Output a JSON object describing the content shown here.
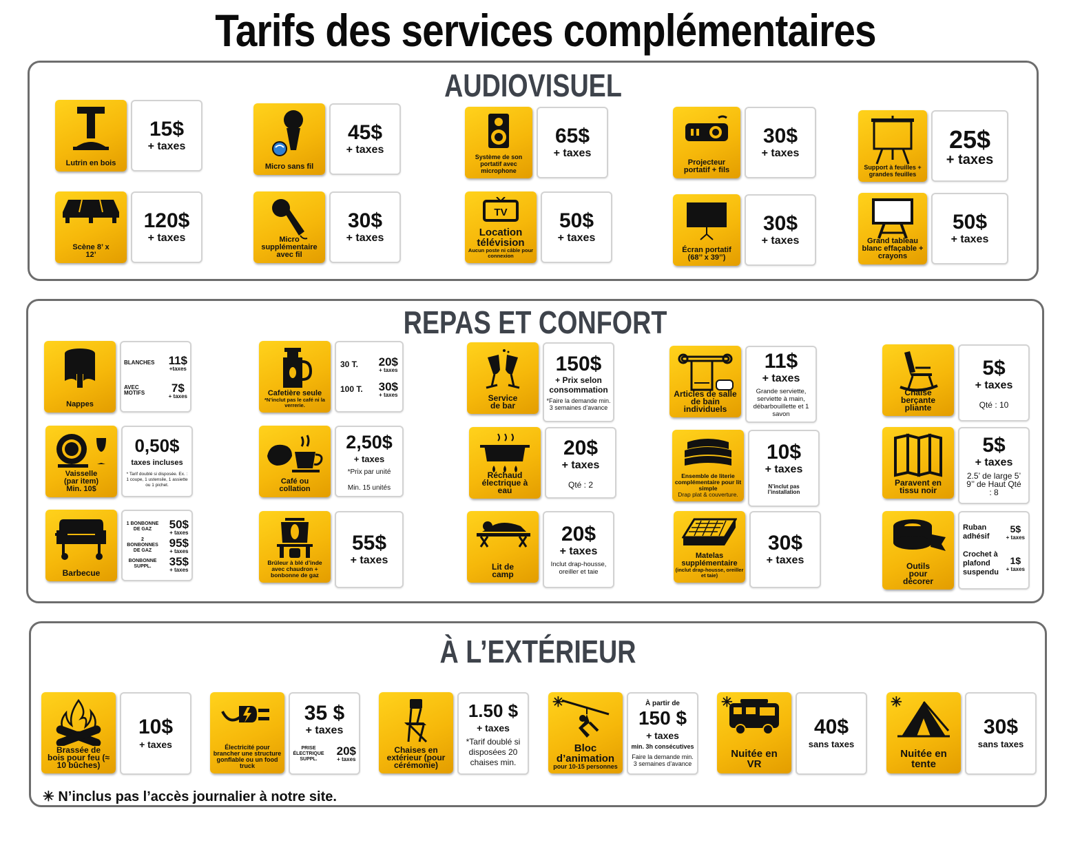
{
  "title": "Tarifs des services complémentaires",
  "sections": {
    "audio": "AUDIOVISUEL",
    "repas": "REPAS ET CONFORT",
    "ext": "À L’EXTÉRIEUR"
  },
  "colors": {
    "accent": "#f6b80a",
    "border": "#6d6d6d",
    "heading": "#3e434b"
  },
  "items": {
    "lutrin": {
      "label": "Lutrin en bois",
      "price": "15$",
      "taxes": "+ taxes",
      "icon": "lectern-icon"
    },
    "scene": {
      "label": "Scène 8’ x 12’",
      "price": "120$",
      "taxes": "+ taxes",
      "icon": "stage-icon"
    },
    "micro_sf": {
      "label": "Micro sans fil",
      "price": "45$",
      "taxes": "+ taxes",
      "icon": "wireless-mic-icon"
    },
    "micro_supp": {
      "label": "Micro supplémentaire avec fil",
      "price": "30$",
      "taxes": "+ taxes",
      "icon": "microphone-icon"
    },
    "son": {
      "label": "Système de son portatif avec microphone",
      "price": "65$",
      "taxes": "+ taxes",
      "icon": "speaker-icon"
    },
    "tv": {
      "label": "Location télévision",
      "sub": "Aucun poste ni câble pour connexion",
      "price": "50$",
      "taxes": "+ taxes",
      "icon": "tv-icon"
    },
    "projecteur": {
      "label": "Projecteur portatif + fils",
      "price": "30$",
      "taxes": "+ taxes",
      "icon": "projector-icon"
    },
    "ecran": {
      "label": "Écran portatif (68’’ x 39’’)",
      "price": "30$",
      "taxes": "+ taxes",
      "icon": "screen-icon"
    },
    "support": {
      "label": "Support à feuilles + grandes feuilles",
      "price": "25$",
      "taxes": "+ taxes",
      "icon": "flipchart-icon"
    },
    "tableau": {
      "label": "Grand tableau blanc effaçable + crayons",
      "price": "50$",
      "taxes": "+ taxes",
      "icon": "whiteboard-icon"
    },
    "nappes": {
      "label": "Nappes",
      "r1_label": "BLANCHES",
      "r1_price": "11$",
      "r1_tax": "+taxes",
      "r2_label": "AVEC MOTIFS",
      "r2_price": "7$",
      "r2_tax": "+ taxes",
      "icon": "table-cloth-icon"
    },
    "vaisselle": {
      "label": "Vaisselle (par item) Min. 10$",
      "price": "0,50$",
      "taxes": "taxes incluses",
      "note": "* Tarif doublé si disposée. Ex. : 1 coupe, 1 ustensile, 1 assiette ou 1 pichet.",
      "icon": "dishes-icon"
    },
    "barbecue": {
      "label": "Barbecue",
      "r1_label": "1 BONBONNE DE GAZ",
      "r1_price": "50$",
      "r1_tax": "+ taxes",
      "r2_label": "2 BONBONNES DE GAZ",
      "r2_price": "95$",
      "r2_tax": "+ taxes",
      "r3_label": "BONBONNE SUPPL.",
      "r3_price": "35$",
      "r3_tax": "+ taxes",
      "icon": "grill-icon"
    },
    "cafetiere": {
      "label": "Cafetière seule",
      "sub": "*N’inclut pas le café ni la verrerie.",
      "r1_label": "30 T.",
      "r1_price": "20$",
      "r1_tax": "+ taxes",
      "r2_label": "100 T.",
      "r2_price": "30$",
      "r2_tax": "+ taxes",
      "icon": "coffee-maker-icon"
    },
    "cafe": {
      "label": "Café ou collation",
      "price": "2,50$",
      "taxes": "+ taxes",
      "note": "*Prix par unité",
      "note2": "Min. 15 unités",
      "icon": "coffee-cup-icon"
    },
    "bruleur": {
      "label": "Brûleur à blé d’inde avec chaudron + bonbonne de gaz",
      "price": "55$",
      "taxes": "+ taxes",
      "icon": "corn-burner-icon"
    },
    "bar": {
      "label": "Service de bar",
      "price": "150$",
      "taxes": "+ Prix selon consommation",
      "note": "*Faire la demande min. 3 semaines d’avance",
      "icon": "champagne-icon"
    },
    "rechaud": {
      "label": "Réchaud électrique à eau",
      "price": "20$",
      "taxes": "+ taxes",
      "note": "Qté : 2",
      "icon": "warmer-icon"
    },
    "lit": {
      "label": "Lit de camp",
      "price": "20$",
      "taxes": "+ taxes",
      "note": "Inclut drap-housse, oreiller et taie",
      "icon": "cot-icon"
    },
    "bain": {
      "label": "Articles de salle de bain individuels",
      "price": "11$",
      "taxes": "+ taxes",
      "note": "Grande serviette, serviette à main, débarbouillette et 1 savon",
      "icon": "towel-icon"
    },
    "literie": {
      "label": "Ensemble de literie complémentaire pour lit simple",
      "sub": "Drap plat & couverture.",
      "price": "10$",
      "taxes": "+ taxes",
      "note": "N’inclut pas l’installation",
      "icon": "bedding-icon"
    },
    "matelas": {
      "label": "Matelas supplémentaire",
      "sub": "(inclut drap-housse, oreiller et taie)",
      "price": "30$",
      "taxes": "+ taxes",
      "icon": "mattress-icon"
    },
    "chaise_b": {
      "label": "Chaise berçante pliante",
      "price": "5$",
      "taxes": "+ taxes",
      "note": "Qté : 10",
      "icon": "rocking-chair-icon"
    },
    "paravent": {
      "label": "Paravent en tissu noir",
      "price": "5$",
      "taxes": "+ taxes",
      "note": "2.5’ de large 5’ 9’’ de Haut Qté : 8",
      "icon": "room-divider-icon"
    },
    "outils": {
      "label": "Outils pour décorer",
      "r1_label": "Ruban adhésif",
      "r1_price": "5$",
      "r1_tax": "+ taxes",
      "r2_label": "Crochet à plafond suspendu",
      "r2_price": "1$",
      "r2_tax": "+ taxes",
      "icon": "tape-icon"
    },
    "bois": {
      "label": "Brassée de bois pour feu (≈ 10 bûches)",
      "price": "10$",
      "taxes": "+ taxes",
      "icon": "campfire-icon"
    },
    "elec": {
      "label": "Électricité pour brancher une structure gonflable ou un food truck",
      "price": "35 $",
      "taxes": "+ taxes",
      "r_label": "PRISE ÉLECTRIQUE SUPPL.",
      "r_price": "20$",
      "r_tax": "+ taxes",
      "icon": "power-plug-icon"
    },
    "chaises": {
      "label": "Chaises en extérieur (pour cérémonie)",
      "price": "1.50 $",
      "taxes": "+ taxes",
      "note": "*Tarif doublé si disposées 20 chaises min.",
      "icon": "folding-chair-icon"
    },
    "bloc": {
      "label": "Bloc d’animation",
      "sub": "pour 10-15 personnes",
      "pre": "À partir de",
      "price": "150 $",
      "taxes": "+ taxes",
      "note": "min. 3h consécutives",
      "note2": "Faire la demande min. 3 semaines d’avance",
      "star": "✳",
      "icon": "zipline-icon"
    },
    "vr": {
      "label": "Nuitée en VR",
      "price": "40$",
      "taxes": "sans taxes",
      "star": "✳",
      "icon": "rv-icon"
    },
    "tente": {
      "label": "Nuitée en tente",
      "price": "30$",
      "taxes": "sans taxes",
      "star": "✳",
      "icon": "tent-icon"
    }
  },
  "footnote": "✳ N’inclus pas l’accès journalier à notre site."
}
